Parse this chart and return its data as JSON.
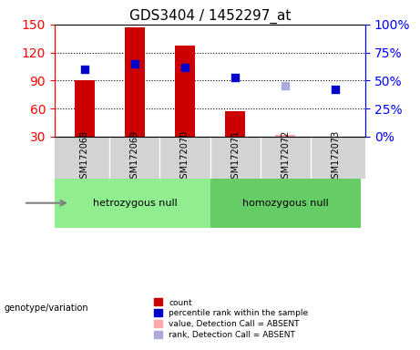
{
  "title": "GDS3404 / 1452297_at",
  "samples": [
    "GSM172068",
    "GSM172069",
    "GSM172070",
    "GSM172071",
    "GSM172072",
    "GSM172073"
  ],
  "counts": [
    90,
    147,
    127,
    57,
    null,
    30
  ],
  "counts_absent": [
    null,
    null,
    null,
    null,
    32,
    null
  ],
  "percentile": [
    60,
    65,
    62,
    53,
    null,
    42
  ],
  "percentile_absent": [
    null,
    null,
    null,
    null,
    45,
    null
  ],
  "left_ylim": [
    30,
    150
  ],
  "right_ylim": [
    0,
    100
  ],
  "left_yticks": [
    30,
    60,
    90,
    120,
    150
  ],
  "right_yticks": [
    0,
    25,
    50,
    75,
    100
  ],
  "right_yticklabels": [
    "0%",
    "25%",
    "50%",
    "75%",
    "100%"
  ],
  "bar_color": "#cc0000",
  "bar_absent_color": "#ffaaaa",
  "dot_color": "#0000cc",
  "dot_absent_color": "#aaaadd",
  "grid_color": "#000000",
  "plot_bg": "#ffffff",
  "label_bg": "#d3d3d3",
  "hetero_bg": "#90ee90",
  "homo_bg": "#66cc66",
  "hetero_label": "hetrozygous null",
  "homo_label": "homozygous null",
  "genotype_label": "genotype/variation",
  "genotype_groups": [
    3,
    3
  ],
  "bar_width": 0.4,
  "dot_size": 40,
  "legend_items": [
    {
      "label": "count",
      "color": "#cc0000",
      "marker": "s"
    },
    {
      "label": "percentile rank within the sample",
      "color": "#0000cc",
      "marker": "s"
    },
    {
      "label": "value, Detection Call = ABSENT",
      "color": "#ffaaaa",
      "marker": "s"
    },
    {
      "label": "rank, Detection Call = ABSENT",
      "color": "#aaaadd",
      "marker": "s"
    }
  ]
}
